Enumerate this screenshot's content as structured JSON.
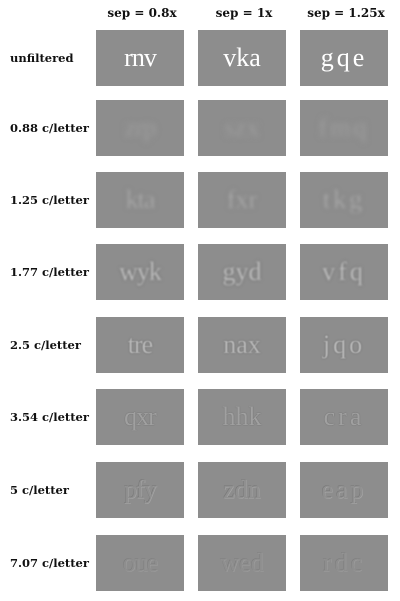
{
  "columns": [
    "sep = 0.8x",
    "sep = 1x",
    "sep = 1.25x"
  ],
  "rows": [
    {
      "label": "unfiltered",
      "words": [
        "rnv",
        "vka",
        "gqe"
      ]
    },
    {
      "label": "0.88 c/letter",
      "words": [
        "zrp",
        "szx",
        "fmq"
      ]
    },
    {
      "label": "1.25 c/letter",
      "words": [
        "kta",
        "fxr",
        "tkg"
      ]
    },
    {
      "label": "1.77 c/letter",
      "words": [
        "wyk",
        "gyd",
        "vfq"
      ]
    },
    {
      "label": "2.5 c/letter",
      "words": [
        "tre",
        "nax",
        "jqo"
      ]
    },
    {
      "label": "3.54 c/letter",
      "words": [
        "qxr",
        "hhk",
        "cra"
      ]
    },
    {
      "label": "5 c/letter",
      "words": [
        "pfy",
        "zdn",
        "eap"
      ]
    },
    {
      "label": "7.07 c/letter",
      "words": [
        "oue",
        "wed",
        "rdc"
      ]
    }
  ],
  "colors": {
    "panel_background": "#8d8d8d",
    "page_background": "#ffffff"
  }
}
